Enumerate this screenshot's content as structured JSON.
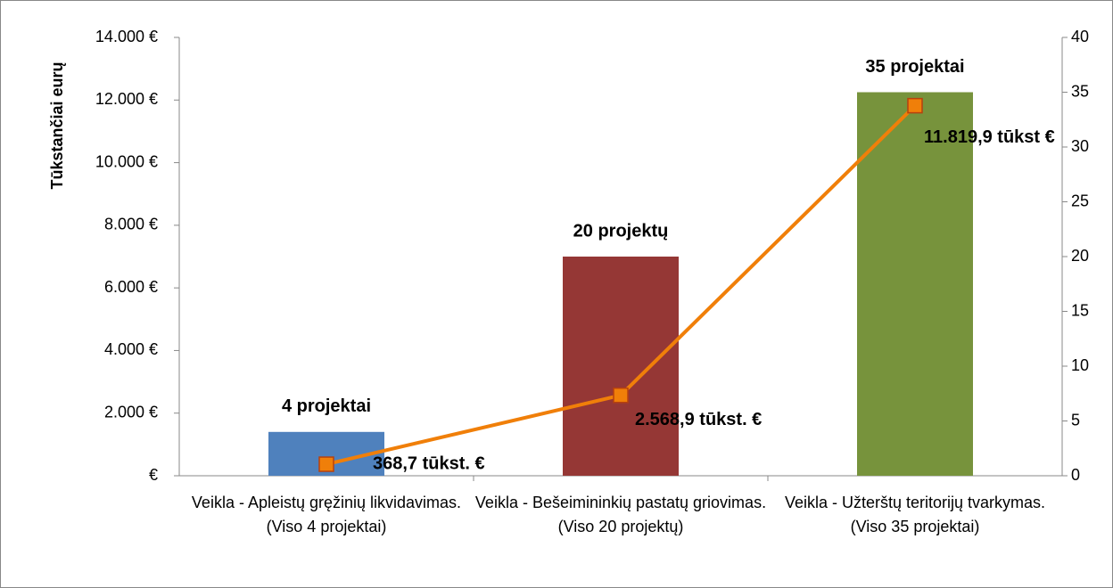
{
  "chart_data": {
    "type": "bar",
    "y_label": "Tūkstančiai eurų",
    "categories": [
      "Veikla - Apleistų gręžinių likvidavimas. (Viso 4 projektai)",
      "Veikla - Bešeimininkių pastatų griovimas. (Viso 20 projektų)",
      "Veikla - Užterštų teritorijų tvarkymas. (Viso 35 projektai)"
    ],
    "series": [
      {
        "type": "bar",
        "axis": "y2",
        "colors": [
          "#4f81bd",
          "#953735",
          "#77933c"
        ],
        "values": [
          4,
          20,
          35
        ],
        "value_labels": [
          "4 projektai",
          "20 projektų",
          "35 projektai"
        ]
      },
      {
        "type": "line",
        "axis": "y",
        "color": "#f07f09",
        "values": [
          368.7,
          2568.9,
          11819.9
        ],
        "value_labels": [
          "368,7 tūkst. €",
          "2.568,9 tūkst. €",
          "11.819,9 tūkst €"
        ]
      }
    ],
    "ylim": [
      0,
      14000
    ],
    "yticks": [
      {
        "value": 0,
        "label": "€"
      },
      {
        "value": 2000,
        "label": "2.000 €"
      },
      {
        "value": 4000,
        "label": "4.000 €"
      },
      {
        "value": 6000,
        "label": "6.000 €"
      },
      {
        "value": 8000,
        "label": "8.000 €"
      },
      {
        "value": 10000,
        "label": "10.000 €"
      },
      {
        "value": 12000,
        "label": "12.000 €"
      },
      {
        "value": 14000,
        "label": "14.000 €"
      }
    ],
    "y2lim": [
      0,
      40
    ],
    "y2ticks": [
      0,
      5,
      10,
      15,
      20,
      25,
      30,
      35,
      40
    ]
  }
}
